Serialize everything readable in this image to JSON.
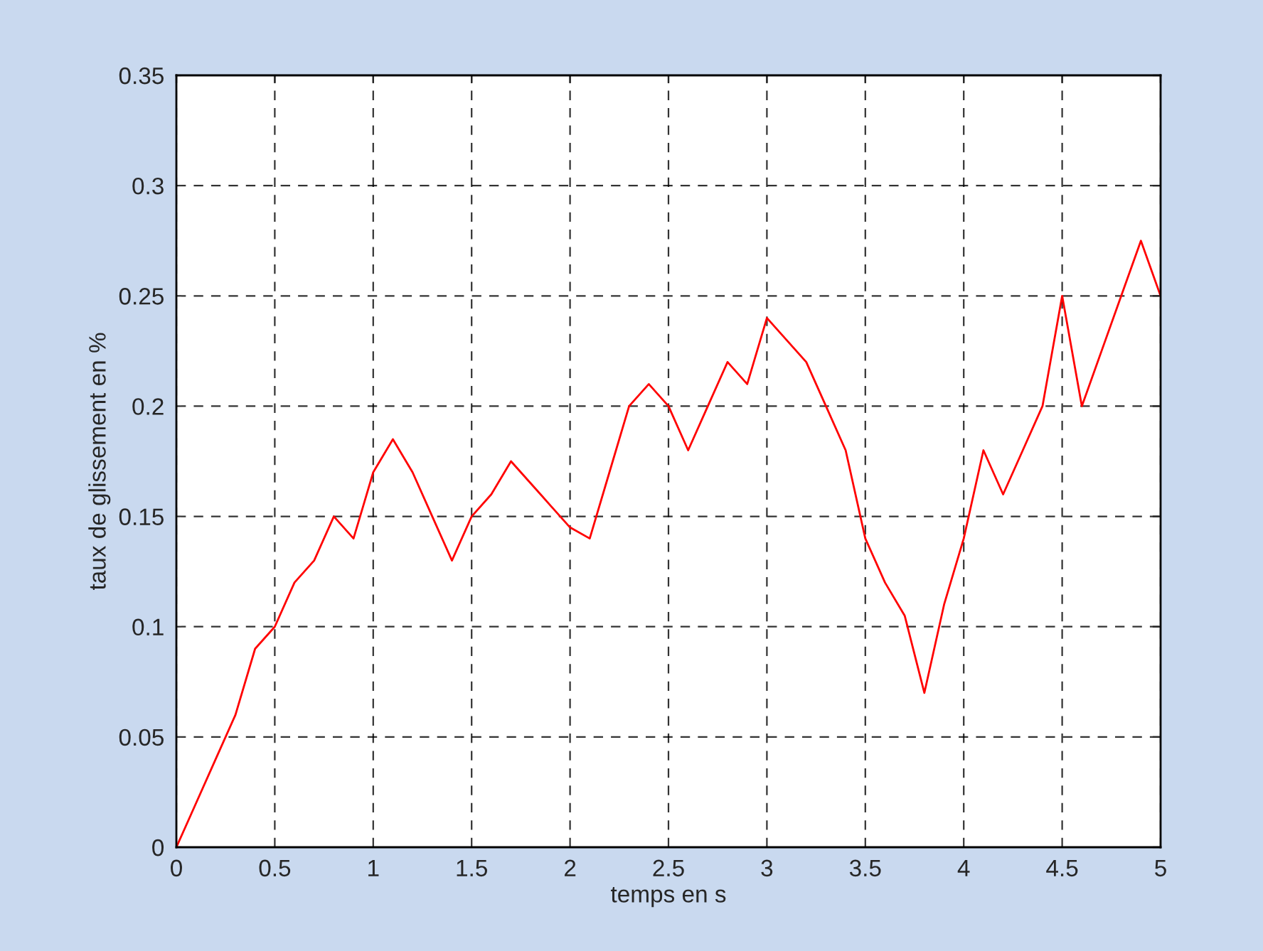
{
  "chart_data": {
    "type": "line",
    "xlabel": "temps en s",
    "ylabel": "taux de glissement en %",
    "x": [
      0,
      0.1,
      0.2,
      0.3,
      0.4,
      0.5,
      0.6,
      0.7,
      0.8,
      0.9,
      1.0,
      1.1,
      1.2,
      1.3,
      1.4,
      1.5,
      1.6,
      1.7,
      1.8,
      1.9,
      2.0,
      2.1,
      2.2,
      2.3,
      2.4,
      2.5,
      2.6,
      2.7,
      2.8,
      2.9,
      3.0,
      3.1,
      3.2,
      3.3,
      3.4,
      3.5,
      3.6,
      3.7,
      3.8,
      3.9,
      4.0,
      4.1,
      4.2,
      4.3,
      4.4,
      4.5,
      4.6,
      4.7,
      4.8,
      4.9,
      5.0
    ],
    "series": [
      {
        "color": "#ff0000",
        "values": [
          0,
          0.02,
          0.04,
          0.06,
          0.09,
          0.1,
          0.12,
          0.13,
          0.15,
          0.14,
          0.17,
          0.185,
          0.17,
          0.15,
          0.13,
          0.15,
          0.16,
          0.175,
          0.165,
          0.155,
          0.145,
          0.14,
          0.17,
          0.2,
          0.21,
          0.2,
          0.18,
          0.2,
          0.22,
          0.21,
          0.24,
          0.23,
          0.22,
          0.2,
          0.18,
          0.14,
          0.12,
          0.105,
          0.07,
          0.11,
          0.14,
          0.18,
          0.16,
          0.18,
          0.2,
          0.25,
          0.2,
          0.225,
          0.25,
          0.275,
          0.25
        ]
      }
    ],
    "xlim": [
      0,
      5
    ],
    "ylim": [
      0,
      0.35
    ],
    "xticks": [
      0,
      0.5,
      1,
      1.5,
      2,
      2.5,
      3,
      3.5,
      4,
      4.5,
      5
    ],
    "yticks": [
      0,
      0.05,
      0.1,
      0.15,
      0.2,
      0.25,
      0.3,
      0.35
    ],
    "grid": true,
    "marker": "none",
    "line_style": "solid"
  }
}
